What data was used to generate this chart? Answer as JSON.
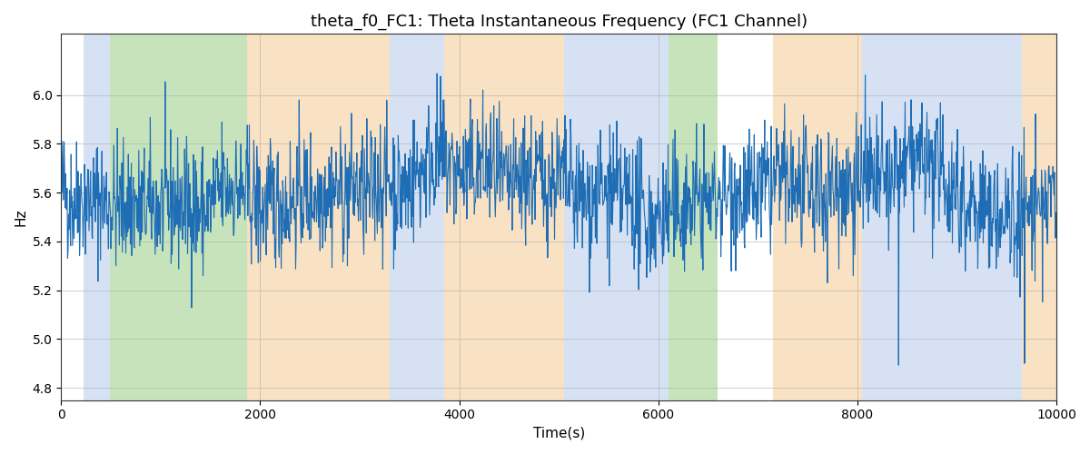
{
  "title": "theta_f0_FC1: Theta Instantaneous Frequency (FC1 Channel)",
  "xlabel": "Time(s)",
  "ylabel": "Hz",
  "xlim": [
    0,
    10000
  ],
  "ylim": [
    4.75,
    6.25
  ],
  "yticks": [
    4.8,
    5.0,
    5.2,
    5.4,
    5.6,
    5.8,
    6.0
  ],
  "xticks": [
    0,
    2000,
    4000,
    6000,
    8000,
    10000
  ],
  "line_color": "#1f6eb5",
  "line_width": 0.8,
  "figsize": [
    12,
    5
  ],
  "dpi": 100,
  "seed": 42,
  "n_points": 2000,
  "mean_freq": 5.6,
  "std_freq": 0.13,
  "colored_bands": [
    {
      "xmin": 230,
      "xmax": 490,
      "color": "#aec6e8",
      "alpha": 0.5
    },
    {
      "xmin": 490,
      "xmax": 1870,
      "color": "#90c87a",
      "alpha": 0.5
    },
    {
      "xmin": 1870,
      "xmax": 3300,
      "color": "#f5c992",
      "alpha": 0.55
    },
    {
      "xmin": 3300,
      "xmax": 3850,
      "color": "#aec6e8",
      "alpha": 0.5
    },
    {
      "xmin": 3850,
      "xmax": 5050,
      "color": "#f5c992",
      "alpha": 0.55
    },
    {
      "xmin": 5050,
      "xmax": 6100,
      "color": "#aec6e8",
      "alpha": 0.5
    },
    {
      "xmin": 6100,
      "xmax": 6600,
      "color": "#90c87a",
      "alpha": 0.5
    },
    {
      "xmin": 7150,
      "xmax": 8050,
      "color": "#f5c992",
      "alpha": 0.55
    },
    {
      "xmin": 8050,
      "xmax": 9650,
      "color": "#aec6e8",
      "alpha": 0.5
    },
    {
      "xmin": 9650,
      "xmax": 10000,
      "color": "#f5c992",
      "alpha": 0.55
    }
  ],
  "background_color": "#ffffff",
  "grid_color": "#b0b0b0",
  "grid_alpha": 0.7,
  "grid_linewidth": 0.6
}
